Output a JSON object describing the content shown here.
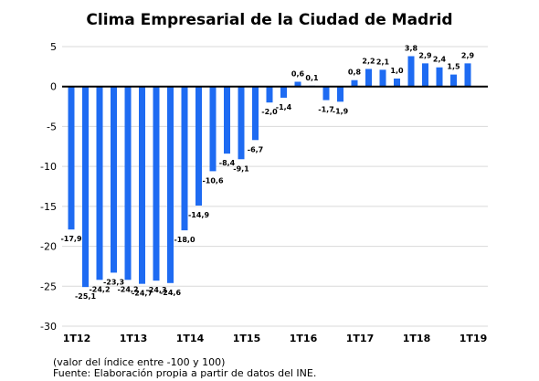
{
  "chart_data": {
    "type": "bar",
    "title": "Clima Empresarial de la Ciudad de Madrid",
    "bar_color": "#1e6bf2",
    "ylim": [
      -30,
      5
    ],
    "yticks": [
      5,
      0,
      -5,
      -10,
      -15,
      -20,
      -25,
      -30
    ],
    "x_tick_labels": [
      {
        "label": "1T12",
        "index": 0
      },
      {
        "label": "1T13",
        "index": 4
      },
      {
        "label": "1T14",
        "index": 8
      },
      {
        "label": "1T15",
        "index": 12
      },
      {
        "label": "1T16",
        "index": 16
      },
      {
        "label": "1T17",
        "index": 20
      },
      {
        "label": "1T18",
        "index": 24
      },
      {
        "label": "1T19",
        "index": 28
      }
    ],
    "values": [
      -17.9,
      -25.1,
      -24.2,
      -23.3,
      -24.2,
      -24.7,
      -24.3,
      -24.6,
      -18.0,
      -14.9,
      -10.6,
      -8.4,
      -9.1,
      -6.7,
      -2.0,
      -1.4,
      0.6,
      0.1,
      -1.7,
      -1.9,
      0.8,
      2.2,
      2.1,
      1.0,
      3.8,
      2.9,
      2.4,
      1.5,
      2.9
    ],
    "data_labels": [
      "-17,9",
      "-25,1",
      "-24,2",
      "-23,3",
      "-24,2",
      "-24,7",
      "-24,3",
      "-24,6",
      "-18,0",
      "-14,9",
      "-10,6",
      "-8,4",
      "-9,1",
      "-6,7",
      "-2,0",
      "-1,4",
      "0,6",
      "0,1",
      "-1,7",
      "-1,9",
      "0,8",
      "2,2",
      "2,1",
      "1,0",
      "3,8",
      "2,9",
      "2,4",
      "1,5",
      "2,9"
    ],
    "grid": true
  },
  "notes": {
    "line1": "(valor del índice entre -100 y 100)",
    "line2": "Fuente: Elaboración propia a partir de datos del INE."
  }
}
